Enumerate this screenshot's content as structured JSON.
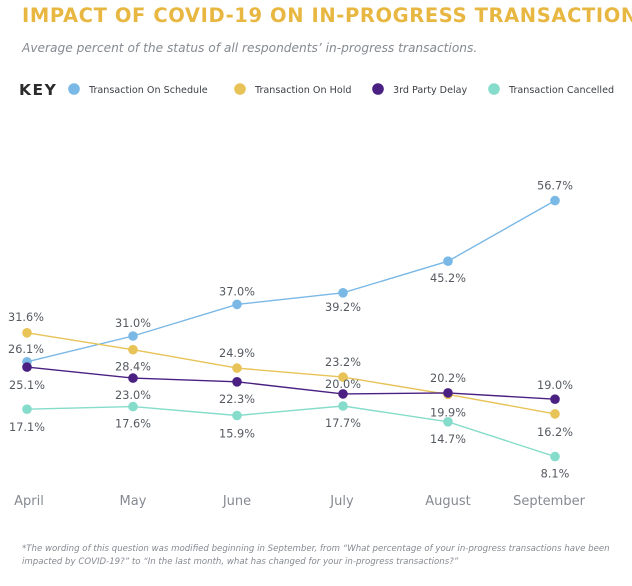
{
  "chart_data": {
    "type": "line",
    "title": "IMPACT OF COVID-19 ON IN-PROGRESS TRANSACTIONS*",
    "subtitle": "Average percent of the status of all respondents’ in-progress transactions.",
    "legend_title": "KEY",
    "legend_position": "top",
    "categories": [
      "April",
      "May",
      "June",
      "July",
      "August",
      "September"
    ],
    "ylim": [
      0,
      60
    ],
    "grid": false,
    "series": [
      {
        "name": "Transaction On Schedule",
        "color": "#7ab8e6",
        "values": [
          26.1,
          31.0,
          37.0,
          39.2,
          45.2,
          56.7
        ],
        "labels": [
          "26.1%",
          "31.0%",
          "37.0%",
          "39.2%",
          "45.2%",
          "56.7%"
        ]
      },
      {
        "name": "Transaction On Hold",
        "color": "#e8c357",
        "values": [
          31.6,
          28.4,
          24.9,
          23.2,
          19.9,
          16.2
        ],
        "labels": [
          "31.6%",
          "28.4%",
          "24.9%",
          "23.2%",
          "19.9%",
          "16.2%"
        ]
      },
      {
        "name": "3rd Party Delay",
        "color": "#4a2183",
        "values": [
          25.1,
          23.0,
          22.3,
          20.0,
          20.2,
          19.0
        ],
        "labels": [
          "25.1%",
          "23.0%",
          "22.3%",
          "20.0%",
          "20.2%",
          "19.0%"
        ]
      },
      {
        "name": "Transaction Cancelled",
        "color": "#86dccb",
        "values": [
          17.1,
          17.6,
          15.9,
          17.7,
          14.7,
          8.1
        ],
        "labels": [
          "17.1%",
          "17.6%",
          "15.9%",
          "17.7%",
          "14.7%",
          "8.1%"
        ]
      }
    ]
  },
  "colors": {
    "title": "#e8b742",
    "label_text": "#555a61",
    "axis_label_text": "#858a91"
  },
  "footnote": "*The wording of this question was modified beginning in September, from “What percentage of your in-progress transactions have been impacted by COVID-19?” to “In the last month, what has changed for your in-progress transactions?”"
}
